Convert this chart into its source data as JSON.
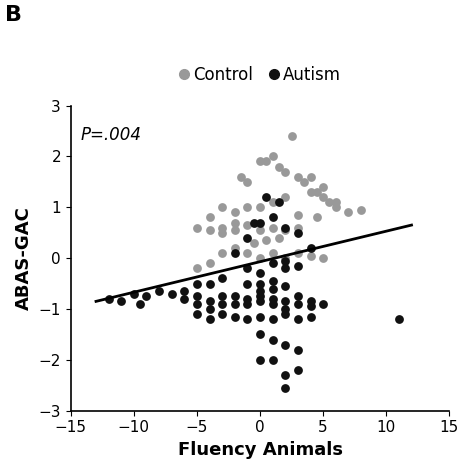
{
  "title_letter": "B",
  "xlabel": "Fluency Animals",
  "ylabel": "ABAS-GAC",
  "xlim": [
    -15,
    15
  ],
  "ylim": [
    -3,
    3
  ],
  "xticks": [
    -15,
    -10,
    -5,
    0,
    5,
    10,
    15
  ],
  "yticks": [
    -3,
    -2,
    -1,
    0,
    1,
    2,
    3
  ],
  "annotation": "P=.004",
  "regression_line": {
    "x_start": -13,
    "x_end": 12,
    "y_start": -0.85,
    "y_end": 0.65
  },
  "control_color": "#999999",
  "autism_color": "#111111",
  "background_color": "#ffffff",
  "control_points": [
    [
      -3,
      0.6
    ],
    [
      -2,
      0.7
    ],
    [
      -1.5,
      1.6
    ],
    [
      -1,
      1.5
    ],
    [
      0,
      1.9
    ],
    [
      0.5,
      1.9
    ],
    [
      1,
      2.0
    ],
    [
      1.5,
      1.8
    ],
    [
      2,
      1.7
    ],
    [
      2.5,
      2.4
    ],
    [
      3,
      1.6
    ],
    [
      3.5,
      1.5
    ],
    [
      4,
      1.6
    ],
    [
      4.5,
      1.3
    ],
    [
      5,
      1.4
    ],
    [
      5.5,
      1.1
    ],
    [
      6,
      1.0
    ],
    [
      7,
      0.9
    ],
    [
      8,
      0.95
    ],
    [
      3,
      0.6
    ],
    [
      2,
      0.55
    ],
    [
      1,
      0.6
    ],
    [
      0,
      0.55
    ],
    [
      -1,
      0.65
    ],
    [
      -2,
      0.55
    ],
    [
      -3,
      0.5
    ],
    [
      -4,
      0.55
    ],
    [
      -5,
      0.6
    ],
    [
      -4,
      -0.1
    ],
    [
      -5,
      -0.2
    ],
    [
      -3,
      0.1
    ],
    [
      -2,
      0.2
    ],
    [
      -1,
      0.1
    ],
    [
      0,
      0.0
    ],
    [
      1,
      0.1
    ],
    [
      2,
      0.0
    ],
    [
      3,
      0.1
    ],
    [
      4,
      0.05
    ],
    [
      5,
      0.0
    ],
    [
      2,
      1.2
    ],
    [
      1,
      1.1
    ],
    [
      0,
      1.0
    ],
    [
      -1,
      1.0
    ],
    [
      -2,
      0.9
    ],
    [
      -3,
      1.0
    ],
    [
      -4,
      0.8
    ],
    [
      4,
      1.3
    ],
    [
      5,
      1.2
    ],
    [
      6,
      1.1
    ],
    [
      3,
      0.85
    ],
    [
      4.5,
      0.8
    ],
    [
      -0.5,
      0.3
    ],
    [
      0.5,
      0.35
    ],
    [
      1.5,
      0.4
    ]
  ],
  "autism_points": [
    [
      -12,
      -0.8
    ],
    [
      -11,
      -0.85
    ],
    [
      -10,
      -0.7
    ],
    [
      -9,
      -0.75
    ],
    [
      -9.5,
      -0.9
    ],
    [
      -8,
      -0.65
    ],
    [
      -7,
      -0.7
    ],
    [
      -6,
      -0.8
    ],
    [
      -6,
      -0.65
    ],
    [
      -5,
      -0.9
    ],
    [
      -5,
      -0.75
    ],
    [
      -4,
      -1.0
    ],
    [
      -4,
      -0.85
    ],
    [
      -3,
      -0.9
    ],
    [
      -3,
      -0.75
    ],
    [
      -2,
      -0.9
    ],
    [
      -2,
      -0.75
    ],
    [
      -1,
      -0.9
    ],
    [
      -1,
      -0.8
    ],
    [
      0,
      -0.85
    ],
    [
      0,
      -0.75
    ],
    [
      1,
      -0.9
    ],
    [
      1,
      -0.8
    ],
    [
      2,
      -1.0
    ],
    [
      2,
      -0.85
    ],
    [
      3,
      -0.9
    ],
    [
      3,
      -0.75
    ],
    [
      4,
      -0.95
    ],
    [
      4,
      -0.85
    ],
    [
      5,
      -0.9
    ],
    [
      -5,
      -1.1
    ],
    [
      -4,
      -1.2
    ],
    [
      -3,
      -1.1
    ],
    [
      -2,
      -1.15
    ],
    [
      -1,
      -1.2
    ],
    [
      0,
      -1.15
    ],
    [
      1,
      -1.2
    ],
    [
      2,
      -1.1
    ],
    [
      3,
      -1.2
    ],
    [
      4,
      -1.15
    ],
    [
      0,
      -1.5
    ],
    [
      1,
      -1.6
    ],
    [
      2,
      -1.7
    ],
    [
      3,
      -1.8
    ],
    [
      1,
      -2.0
    ],
    [
      2,
      -2.3
    ],
    [
      0,
      -2.0
    ],
    [
      2,
      -2.55
    ],
    [
      3,
      -2.2
    ],
    [
      11,
      -1.2
    ],
    [
      -1,
      -0.2
    ],
    [
      0,
      -0.3
    ],
    [
      1,
      -0.1
    ],
    [
      2,
      -0.2
    ],
    [
      3,
      -0.15
    ],
    [
      0,
      0.7
    ],
    [
      1,
      0.8
    ],
    [
      1.5,
      1.1
    ],
    [
      0.5,
      1.2
    ],
    [
      -0.5,
      0.7
    ],
    [
      2,
      0.6
    ],
    [
      -1,
      0.4
    ],
    [
      -2,
      0.1
    ],
    [
      -1,
      -0.5
    ],
    [
      0,
      -0.5
    ],
    [
      1,
      -0.45
    ],
    [
      2,
      -0.55
    ],
    [
      -3,
      -0.4
    ],
    [
      -4,
      -0.5
    ],
    [
      -5,
      -0.5
    ],
    [
      3,
      0.5
    ],
    [
      4,
      0.2
    ],
    [
      2,
      -0.05
    ],
    [
      1,
      -0.6
    ],
    [
      0,
      -0.65
    ]
  ]
}
